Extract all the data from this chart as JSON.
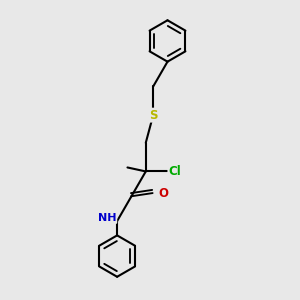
{
  "background_color": "#e8e8e8",
  "atom_colors": {
    "C": "#000000",
    "N": "#0000cc",
    "O": "#cc0000",
    "S": "#b8b800",
    "Cl": "#00aa00"
  },
  "bond_lw": 1.5,
  "font_size": 8.5,
  "figsize": [
    3.0,
    3.0
  ],
  "dpi": 100,
  "xlim": [
    -0.5,
    1.5
  ],
  "ylim": [
    -1.7,
    2.0
  ]
}
